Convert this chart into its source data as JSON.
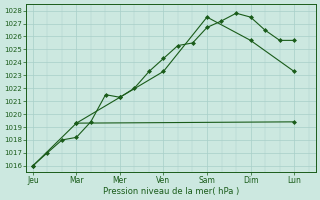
{
  "xlabel": "Pression niveau de la mer( hPa )",
  "background_color": "#cce8e0",
  "line_color": "#1a5c1a",
  "grid_color": "#a8cfc8",
  "ylim": [
    1015.5,
    1028.5
  ],
  "yticks": [
    1016,
    1017,
    1018,
    1019,
    1020,
    1021,
    1022,
    1023,
    1024,
    1025,
    1026,
    1027,
    1028
  ],
  "x_labels": [
    "Jeu",
    "Mar",
    "Mer",
    "Ven",
    "Sam",
    "Dim",
    "Lun"
  ],
  "x_positions": [
    0,
    1,
    2,
    3,
    4,
    5,
    6
  ],
  "xlim": [
    -0.15,
    6.5
  ],
  "line1_x": [
    0,
    0.33,
    0.67,
    1.0,
    1.33,
    1.67,
    2.0,
    2.33,
    2.67,
    3.0,
    3.33,
    3.67,
    4.0,
    4.33,
    4.67,
    5.0,
    5.33,
    5.67,
    6.0
  ],
  "line1_y": [
    1016.0,
    1017.0,
    1018.0,
    1018.2,
    1019.4,
    1021.5,
    1021.3,
    1022.0,
    1023.3,
    1024.3,
    1025.3,
    1025.5,
    1026.7,
    1027.2,
    1027.8,
    1027.5,
    1026.5,
    1025.7,
    1025.7
  ],
  "line2_x": [
    1.0,
    2.0,
    3.0,
    4.0,
    5.0,
    6.0
  ],
  "line2_y": [
    1019.3,
    1021.3,
    1023.3,
    1027.5,
    1025.7,
    1023.3
  ],
  "line3_x": [
    0,
    1.0,
    6.0
  ],
  "line3_y": [
    1016.0,
    1019.3,
    1019.4
  ]
}
